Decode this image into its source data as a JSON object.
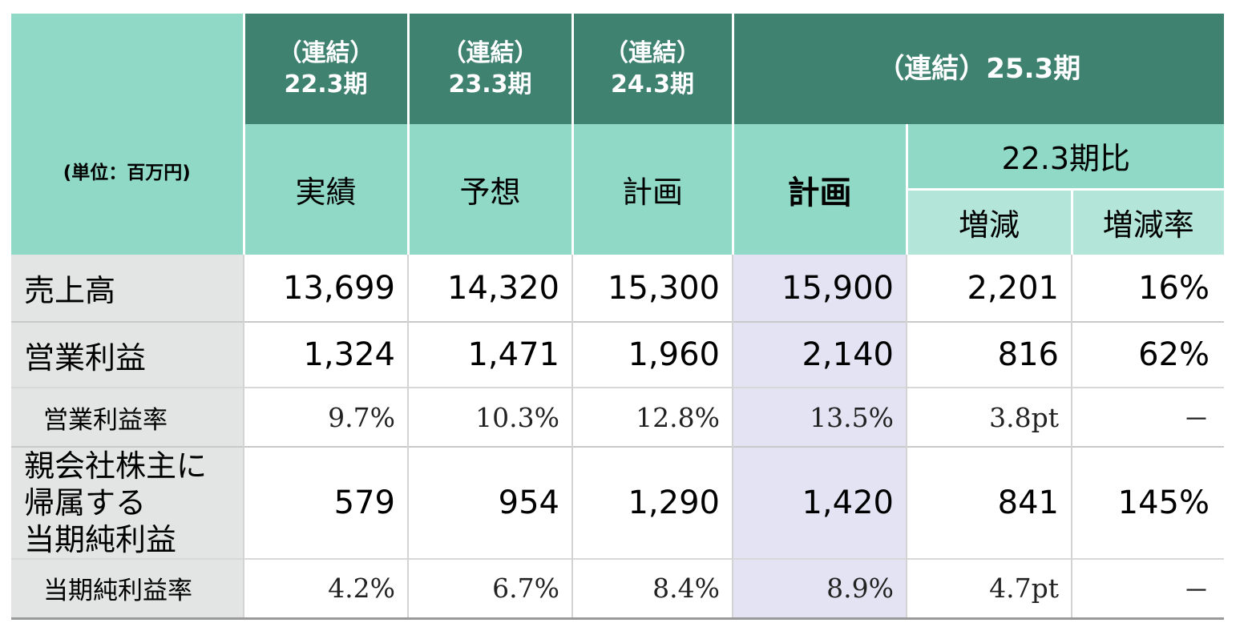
{
  "table": {
    "unit_label": "(単位：百万円)",
    "periods": [
      {
        "line1": "（連結）",
        "line2": "22.3期",
        "type": "実績"
      },
      {
        "line1": "（連結）",
        "line2": "23.3期",
        "type": "予想"
      },
      {
        "line1": "（連結）",
        "line2": "24.3期",
        "type": "計画"
      }
    ],
    "current_period": {
      "title": "（連結）25.3期",
      "type": "計画",
      "comparison_header": "22.3期比",
      "change_label": "増減",
      "change_rate_label": "増減率"
    },
    "rows": [
      {
        "label": "売上高",
        "values": [
          "13,699",
          "14,320",
          "15,300",
          "15,900",
          "2,201",
          "16%"
        ]
      },
      {
        "label": "営業利益",
        "values": [
          "1,324",
          "1,471",
          "1,960",
          "2,140",
          "816",
          "62%"
        ]
      },
      {
        "label": "営業利益率",
        "values": [
          "9.7%",
          "10.3%",
          "12.8%",
          "13.5%",
          "3.8pt",
          "－"
        ]
      },
      {
        "label_lines": [
          "親会社株主に",
          "帰属する",
          "当期純利益"
        ],
        "values": [
          "579",
          "954",
          "1,290",
          "1,420",
          "841",
          "145%"
        ]
      },
      {
        "label": "当期純利益率",
        "values": [
          "4.2%",
          "6.7%",
          "8.4%",
          "8.9%",
          "4.7pt",
          "－"
        ]
      }
    ]
  },
  "colors": {
    "header_dark": "#3f8270",
    "header_light": "#8fd9c6",
    "header_pale": "#b3e6d8",
    "label_bg": "#e3e4e4",
    "plan_highlight": "#e4e3f3"
  }
}
